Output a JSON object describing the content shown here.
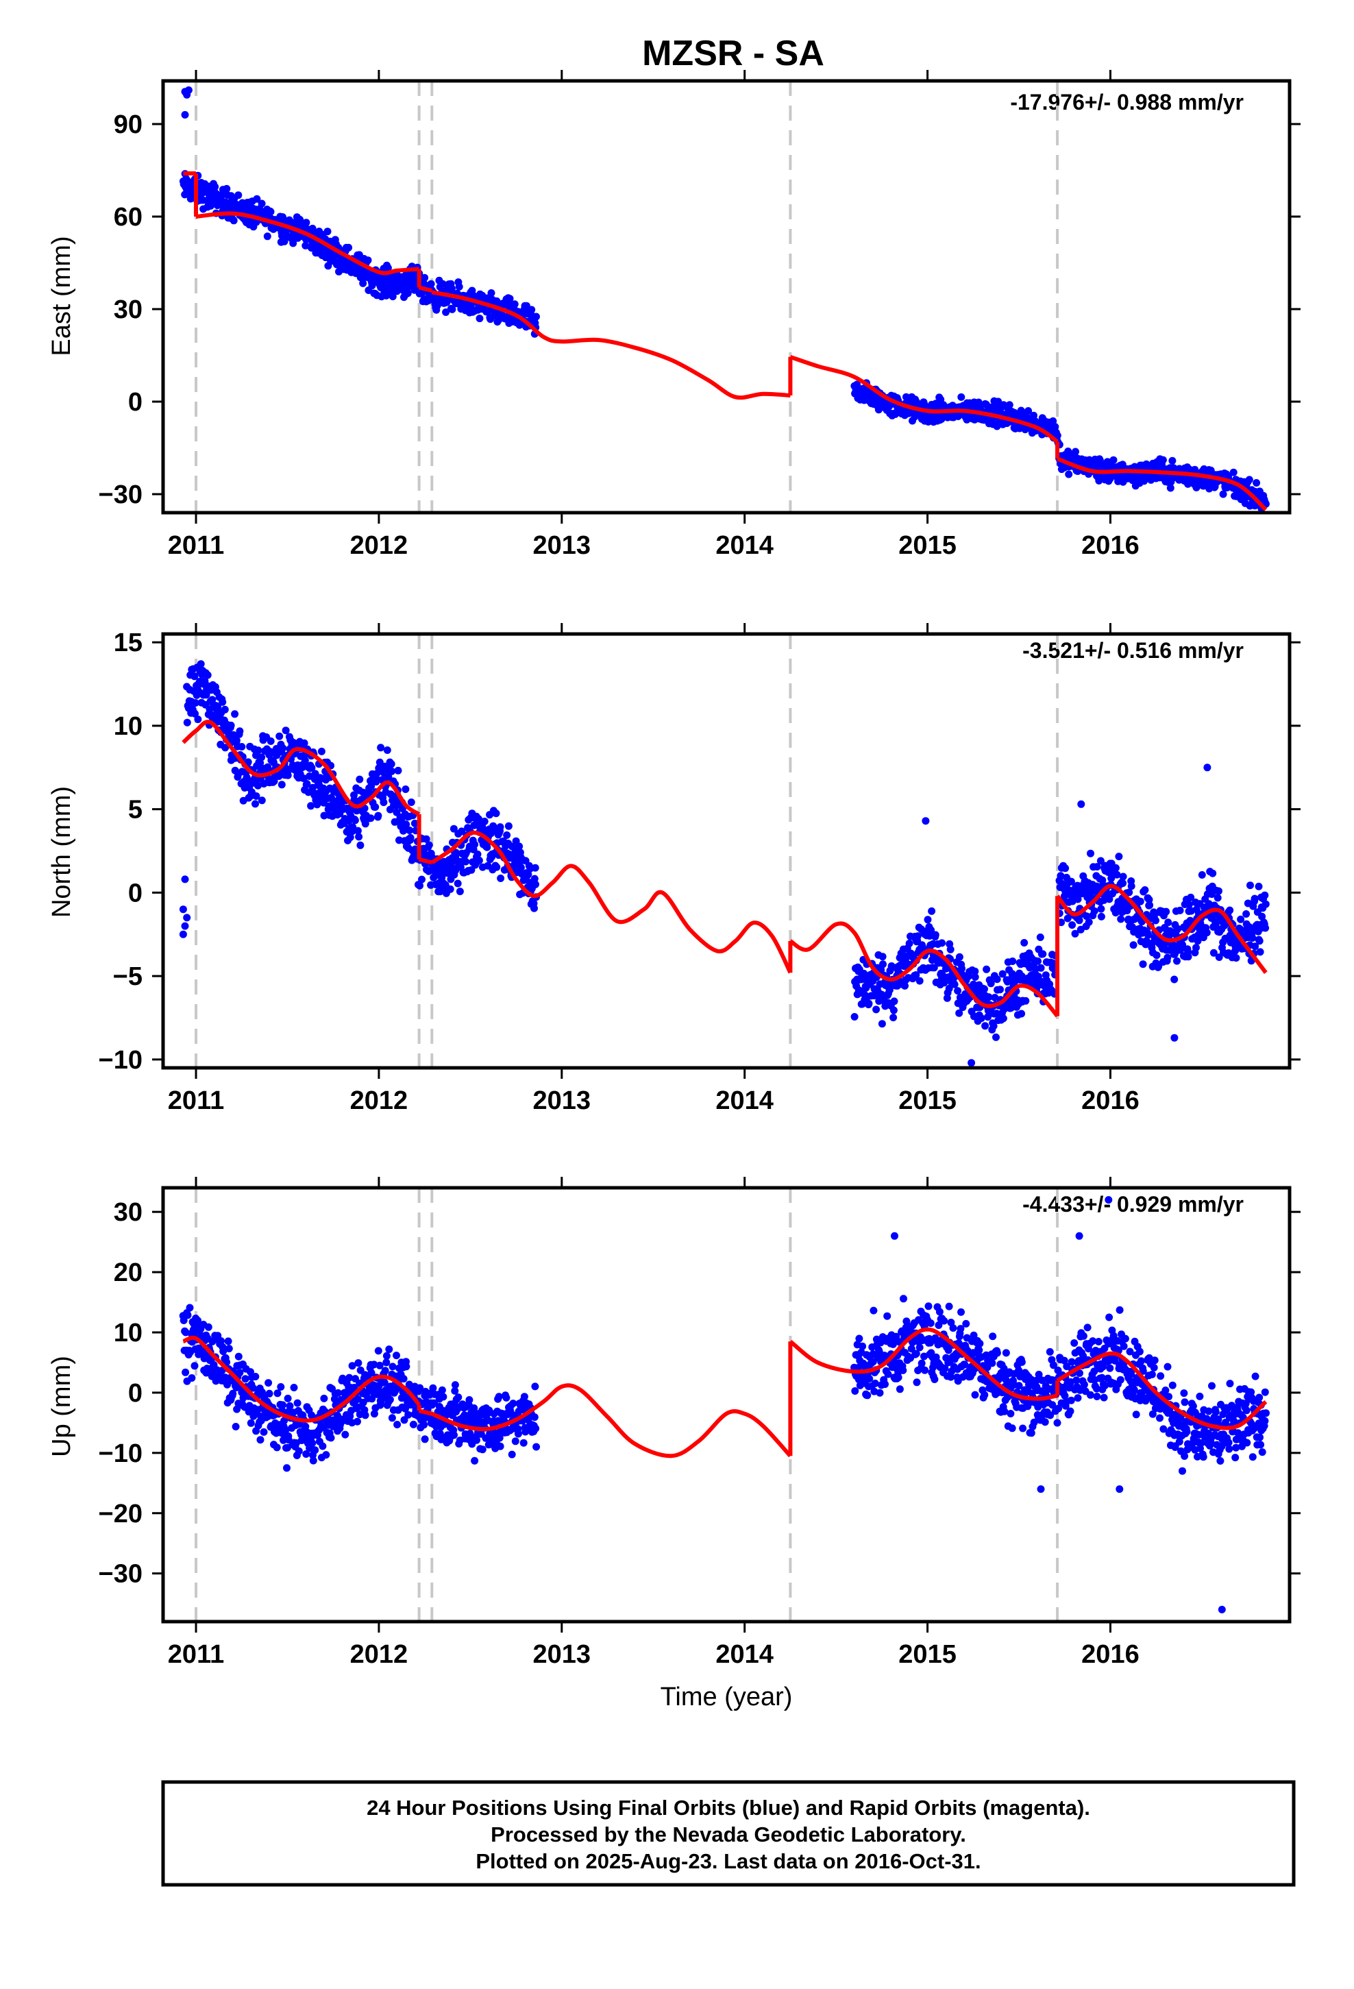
{
  "title": "MZSR - SA",
  "xlabel": "Time (year)",
  "footer": {
    "lines": [
      "24 Hour Positions Using Final Orbits (blue) and Rapid Orbits (magenta).",
      "Processed by the Nevada Geodetic Laboratory.",
      "Plotted on 2025-Aug-23. Last data on 2016-Oct-31."
    ]
  },
  "colors": {
    "final_orbits": "#0000ff",
    "model": "#ff0000",
    "event_lines": "#c8c8c8",
    "frame": "#000000"
  },
  "event_lines_year": [
    2011.0,
    2012.22,
    2012.29,
    2014.25,
    2015.71
  ],
  "chart_data": [
    {
      "type": "scatter",
      "ylabel": "East (mm)",
      "rate_label": "-17.976+/- 0.988 mm/yr",
      "xlim": [
        2010.82,
        2016.98
      ],
      "ylim": [
        -36,
        104
      ],
      "yticks": [
        -30,
        0,
        30,
        60,
        90
      ],
      "xticks": [
        2011,
        2012,
        2013,
        2014,
        2015,
        2016
      ],
      "outliers": [
        [
          2010.94,
          100.5
        ],
        [
          2010.95,
          99.5
        ],
        [
          2010.96,
          101
        ],
        [
          2010.94,
          93
        ]
      ],
      "data_segments": [
        {
          "x": [
            2010.93,
            2011.0,
            2011.3,
            2011.6,
            2011.85,
            2012.0,
            2012.21,
            2012.25,
            2012.5,
            2012.8,
            2012.86
          ],
          "y": [
            69.5,
            68.5,
            61,
            54.5,
            45,
            39,
            38.5,
            35.5,
            32,
            27,
            24
          ],
          "noise": 3.2,
          "days": 700
        },
        {
          "x": [
            2014.6,
            2014.8,
            2015.0,
            2015.3,
            2015.6,
            2015.7,
            2015.73,
            2016.0,
            2016.3,
            2016.6,
            2016.85
          ],
          "y": [
            4,
            -1,
            -3.5,
            -3,
            -7,
            -9,
            -19,
            -23,
            -23,
            -25.5,
            -32
          ],
          "noise": 2.6,
          "days": 825
        }
      ],
      "model_segments": [
        {
          "x": [
            2010.93,
            2011.0
          ],
          "y": [
            74,
            74
          ]
        },
        {
          "x": [
            2011.0,
            2011.2,
            2011.4,
            2011.6,
            2011.8,
            2012.0,
            2012.1,
            2012.22
          ],
          "y": [
            60,
            61,
            58.5,
            54.5,
            48,
            42,
            42.5,
            43
          ]
        },
        {
          "x": [
            2012.22,
            2012.29
          ],
          "y": [
            37,
            36
          ]
        },
        {
          "x": [
            2012.29,
            2012.5,
            2012.75,
            2012.9,
            2013.0,
            2013.2,
            2013.4,
            2013.6,
            2013.8,
            2013.95,
            2014.1,
            2014.25
          ],
          "y": [
            35.5,
            33,
            28,
            21,
            19.5,
            20,
            17.5,
            13.5,
            7,
            1.5,
            2.5,
            2
          ]
        },
        {
          "x": [
            2014.25,
            2014.4,
            2014.6,
            2014.8,
            2015.0,
            2015.2,
            2015.4,
            2015.6,
            2015.71
          ],
          "y": [
            14.5,
            11.5,
            8,
            0.5,
            -3,
            -3,
            -5,
            -8.5,
            -13
          ]
        },
        {
          "x": [
            2015.71,
            2015.9,
            2016.1,
            2016.3,
            2016.5,
            2016.7,
            2016.85
          ],
          "y": [
            -18.5,
            -22.5,
            -22.5,
            -23,
            -24,
            -27,
            -35
          ]
        }
      ]
    },
    {
      "type": "scatter",
      "ylabel": "North (mm)",
      "rate_label": "-3.521+/- 0.516 mm/yr",
      "xlim": [
        2010.82,
        2016.98
      ],
      "ylim": [
        -10.5,
        15.5
      ],
      "yticks": [
        -10,
        -5,
        0,
        5,
        10,
        15
      ],
      "xticks": [
        2011,
        2012,
        2013,
        2014,
        2015,
        2016
      ],
      "outliers": [
        [
          2010.93,
          -1
        ],
        [
          2010.93,
          -2.5
        ],
        [
          2010.94,
          -2
        ],
        [
          2010.94,
          0.8
        ],
        [
          2010.95,
          -1.5
        ],
        [
          2014.99,
          4.3
        ],
        [
          2015.84,
          5.3
        ],
        [
          2016.53,
          7.5
        ],
        [
          2016.35,
          -8.7
        ],
        [
          2015.24,
          -10.2
        ]
      ],
      "data_segments": [
        {
          "x": [
            2010.95,
            2011.05,
            2011.15,
            2011.3,
            2011.5,
            2011.7,
            2011.85,
            2012.05,
            2012.22,
            2012.35,
            2012.55,
            2012.7,
            2012.86
          ],
          "y": [
            11,
            12.5,
            10,
            7,
            8.5,
            6.5,
            4,
            7,
            2,
            1,
            3.5,
            2.5,
            0
          ],
          "noise": 1.25,
          "days": 700
        },
        {
          "x": [
            2014.6,
            2014.8,
            2015.0,
            2015.2,
            2015.4,
            2015.55,
            2015.7
          ],
          "y": [
            -5.5,
            -5.5,
            -3,
            -6,
            -6.5,
            -5,
            -5
          ],
          "noise": 1.3,
          "days": 400
        },
        {
          "x": [
            2015.72,
            2015.85,
            2016.0,
            2016.2,
            2016.35,
            2016.55,
            2016.7,
            2016.85
          ],
          "y": [
            0,
            -0.5,
            0.5,
            -2,
            -3,
            -1,
            -3,
            -1
          ],
          "noise": 1.4,
          "days": 430
        }
      ],
      "model_segments": [
        {
          "x": [
            2010.93,
            2011.0,
            2011.08,
            2011.2,
            2011.32,
            2011.45,
            2011.55,
            2011.7,
            2011.85,
            2011.95,
            2012.05,
            2012.15,
            2012.22
          ],
          "y": [
            9,
            9.7,
            10.2,
            8.6,
            7.1,
            7.4,
            8.6,
            7.7,
            5.3,
            5.6,
            6.6,
            5.2,
            4.7
          ]
        },
        {
          "x": [
            2012.22,
            2012.29
          ],
          "y": [
            2,
            1.8
          ]
        },
        {
          "x": [
            2012.29,
            2012.4,
            2012.52,
            2012.65,
            2012.75,
            2012.85,
            2012.95,
            2013.05,
            2013.15,
            2013.3,
            2013.45,
            2013.55,
            2013.7,
            2013.85,
            2013.95,
            2014.05,
            2014.15,
            2014.25
          ],
          "y": [
            1.8,
            2.6,
            3.6,
            2.6,
            0.8,
            -0.2,
            0.6,
            1.6,
            0.6,
            -1.7,
            -1,
            0,
            -2.2,
            -3.5,
            -2.9,
            -1.8,
            -2.6,
            -4.8
          ]
        },
        {
          "x": [
            2014.25,
            2014.35,
            2014.5,
            2014.6,
            2014.7,
            2014.8,
            2014.9,
            2015.0,
            2015.1,
            2015.2,
            2015.3,
            2015.4,
            2015.5,
            2015.6,
            2015.71
          ],
          "y": [
            -2.9,
            -3.4,
            -1.9,
            -2.4,
            -4.5,
            -5.2,
            -4.6,
            -3.5,
            -4,
            -5.5,
            -6.7,
            -6.6,
            -5.6,
            -6,
            -7.4
          ]
        },
        {
          "x": [
            2015.71,
            2015.8,
            2015.9,
            2016.0,
            2016.1,
            2016.2,
            2016.3,
            2016.4,
            2016.5,
            2016.6,
            2016.7,
            2016.85
          ],
          "y": [
            -0.2,
            -1.3,
            -0.6,
            0.4,
            -0.4,
            -1.7,
            -2.8,
            -2.6,
            -1.4,
            -1.1,
            -2.6,
            -4.8
          ]
        }
      ]
    },
    {
      "type": "scatter",
      "ylabel": "Up (mm)",
      "rate_label": "-4.433+/- 0.929 mm/yr",
      "xlim": [
        2010.82,
        2016.98
      ],
      "ylim": [
        -38,
        34
      ],
      "yticks": [
        -30,
        -20,
        -10,
        0,
        10,
        20,
        30
      ],
      "xticks": [
        2011,
        2012,
        2013,
        2014,
        2015,
        2016
      ],
      "outliers": [
        [
          2016.61,
          -36
        ],
        [
          2015.99,
          32
        ],
        [
          2015.83,
          26
        ],
        [
          2014.82,
          26
        ],
        [
          2015.62,
          -16
        ],
        [
          2016.05,
          -16
        ]
      ],
      "data_segments": [
        {
          "x": [
            2010.93,
            2011.0,
            2011.2,
            2011.45,
            2011.65,
            2011.85,
            2012.0,
            2012.15,
            2012.3,
            2012.5,
            2012.7,
            2012.86
          ],
          "y": [
            8,
            9,
            2,
            -5,
            -7,
            -1,
            2,
            -1,
            -3,
            -5,
            -5,
            -4
          ],
          "noise": 3.6,
          "days": 700
        },
        {
          "x": [
            2014.6,
            2014.8,
            2015.0,
            2015.2,
            2015.45,
            2015.65,
            2015.85,
            2016.0,
            2016.2,
            2016.4,
            2016.6,
            2016.85
          ],
          "y": [
            4,
            6,
            9,
            7,
            1,
            -1,
            4,
            7,
            2,
            -6,
            -7,
            -3
          ],
          "noise": 4.2,
          "days": 830
        }
      ],
      "model_segments": [
        {
          "x": [
            2010.93,
            2011.0,
            2011.1,
            2011.2,
            2011.35,
            2011.5,
            2011.65,
            2011.8,
            2011.95,
            2012.05,
            2012.15,
            2012.22
          ],
          "y": [
            8.5,
            9,
            6,
            3,
            -1.5,
            -4,
            -4.5,
            -2,
            2,
            2.5,
            0.5,
            -2
          ]
        },
        {
          "x": [
            2012.22,
            2012.29
          ],
          "y": [
            -3,
            -3.5
          ]
        },
        {
          "x": [
            2012.29,
            2012.45,
            2012.6,
            2012.75,
            2012.9,
            2013.0,
            2013.1,
            2013.25,
            2013.4,
            2013.6,
            2013.75,
            2013.9,
            2014.0,
            2014.1,
            2014.25
          ],
          "y": [
            -3.5,
            -5.5,
            -6,
            -4.5,
            -1.5,
            1,
            0.5,
            -4,
            -8.5,
            -10.5,
            -8,
            -3.5,
            -3.5,
            -5.5,
            -10.5
          ]
        },
        {
          "x": [
            2014.25,
            2014.4,
            2014.6,
            2014.75,
            2014.9,
            2015.0,
            2015.1,
            2015.25,
            2015.45,
            2015.6,
            2015.71
          ],
          "y": [
            8.5,
            5,
            3.5,
            4.5,
            9,
            10.5,
            9,
            5,
            0,
            -1,
            -0.5
          ]
        },
        {
          "x": [
            2015.71,
            2015.85,
            2016.0,
            2016.1,
            2016.25,
            2016.4,
            2016.55,
            2016.7,
            2016.85
          ],
          "y": [
            2,
            4.5,
            6.5,
            5,
            0,
            -3.5,
            -5.5,
            -5.5,
            -1.5
          ]
        }
      ]
    }
  ]
}
